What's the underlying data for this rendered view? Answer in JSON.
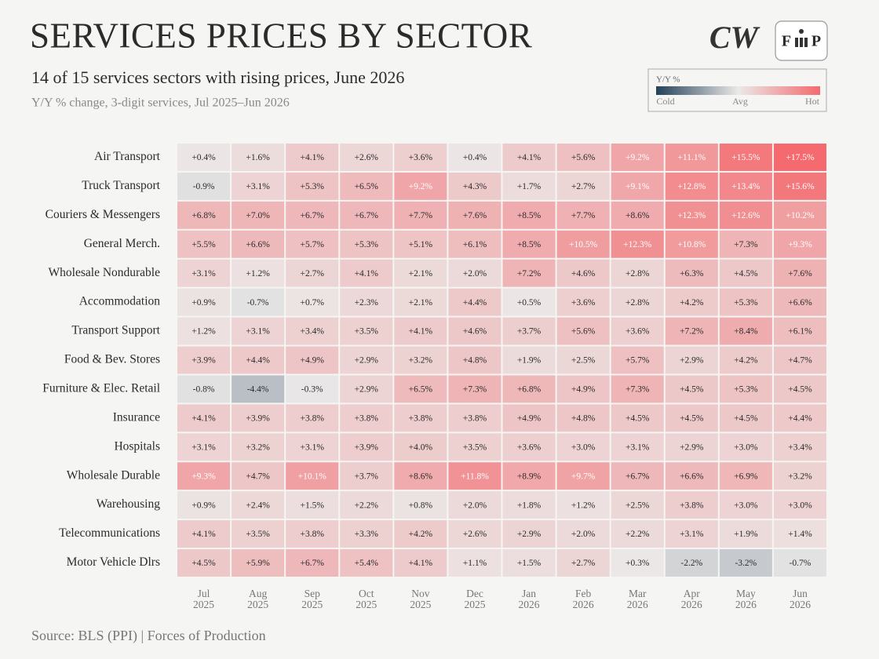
{
  "chart_data": {
    "type": "heatmap",
    "title": "SERVICES PRICES BY SECTOR",
    "subtitle": "14 of 15 services sectors with rising prices, June 2026",
    "caption": "Y/Y % change, 3-digit services, Jul 2025–Jun 2026",
    "source": "Source: BLS (PPI) | Forces of Production",
    "brand_marks": [
      "CW",
      "F",
      "P"
    ],
    "legend": {
      "title": "Y/Y %",
      "labels": [
        "Cold",
        "Avg",
        "Hot"
      ]
    },
    "colormap": [
      "#234158",
      "#ebe9e8",
      "#f46a6f"
    ],
    "x": [
      "Jul 2025",
      "Aug 2025",
      "Sep 2025",
      "Oct 2025",
      "Nov 2025",
      "Dec 2025",
      "Jan 2026",
      "Feb 2026",
      "Mar 2026",
      "Apr 2026",
      "May 2026",
      "Jun 2026"
    ],
    "series": [
      {
        "name": "Air Transport",
        "values": [
          0.4,
          1.6,
          4.1,
          2.6,
          3.6,
          0.4,
          4.1,
          5.6,
          9.2,
          11.1,
          15.5,
          17.5
        ],
        "value_labels": [
          "+0.4%",
          "+1.6%",
          "+4.1%",
          "+2.6%",
          "+3.6%",
          "+0.4%",
          "+4.1%",
          "+5.6%",
          "+9.2%",
          "+11.1%",
          "+15.5%",
          "+17.5%"
        ]
      },
      {
        "name": "Truck Transport",
        "values": [
          -0.9,
          3.1,
          5.3,
          6.5,
          9.2,
          4.3,
          1.7,
          2.7,
          9.1,
          12.8,
          13.4,
          15.6
        ],
        "value_labels": [
          "-0.9%",
          "+3.1%",
          "+5.3%",
          "+6.5%",
          "+9.2%",
          "+4.3%",
          "+1.7%",
          "+2.7%",
          "+9.1%",
          "+12.8%",
          "+13.4%",
          "+15.6%"
        ]
      },
      {
        "name": "Couriers & Messengers",
        "values": [
          6.8,
          7.0,
          6.7,
          6.7,
          7.7,
          7.6,
          8.5,
          7.7,
          8.6,
          12.3,
          12.6,
          10.2
        ],
        "value_labels": [
          "+6.8%",
          "+7.0%",
          "+6.7%",
          "+6.7%",
          "+7.7%",
          "+7.6%",
          "+8.5%",
          "+7.7%",
          "+8.6%",
          "+12.3%",
          "+12.6%",
          "+10.2%"
        ]
      },
      {
        "name": "General Merch.",
        "values": [
          5.5,
          6.6,
          5.7,
          5.3,
          5.1,
          6.1,
          8.5,
          10.5,
          12.3,
          10.8,
          7.3,
          9.3
        ],
        "value_labels": [
          "+5.5%",
          "+6.6%",
          "+5.7%",
          "+5.3%",
          "+5.1%",
          "+6.1%",
          "+8.5%",
          "+10.5%",
          "+12.3%",
          "+10.8%",
          "+7.3%",
          "+9.3%"
        ]
      },
      {
        "name": "Wholesale Nondurable",
        "values": [
          3.1,
          1.2,
          2.7,
          4.1,
          2.1,
          2.0,
          7.2,
          4.6,
          2.8,
          6.3,
          4.5,
          7.6
        ],
        "value_labels": [
          "+3.1%",
          "+1.2%",
          "+2.7%",
          "+4.1%",
          "+2.1%",
          "+2.0%",
          "+7.2%",
          "+4.6%",
          "+2.8%",
          "+6.3%",
          "+4.5%",
          "+7.6%"
        ]
      },
      {
        "name": "Accommodation",
        "values": [
          0.9,
          -0.7,
          0.7,
          2.3,
          2.1,
          4.4,
          0.5,
          3.6,
          2.8,
          4.2,
          5.3,
          6.6
        ],
        "value_labels": [
          "+0.9%",
          "-0.7%",
          "+0.7%",
          "+2.3%",
          "+2.1%",
          "+4.4%",
          "+0.5%",
          "+3.6%",
          "+2.8%",
          "+4.2%",
          "+5.3%",
          "+6.6%"
        ]
      },
      {
        "name": "Transport Support",
        "values": [
          1.2,
          3.1,
          3.4,
          3.5,
          4.1,
          4.6,
          3.7,
          5.6,
          3.6,
          7.2,
          8.4,
          6.1
        ],
        "value_labels": [
          "+1.2%",
          "+3.1%",
          "+3.4%",
          "+3.5%",
          "+4.1%",
          "+4.6%",
          "+3.7%",
          "+5.6%",
          "+3.6%",
          "+7.2%",
          "+8.4%",
          "+6.1%"
        ]
      },
      {
        "name": "Food & Bev. Stores",
        "values": [
          3.9,
          4.4,
          4.9,
          2.9,
          3.2,
          4.8,
          1.9,
          2.5,
          5.7,
          2.9,
          4.2,
          4.7
        ],
        "value_labels": [
          "+3.9%",
          "+4.4%",
          "+4.9%",
          "+2.9%",
          "+3.2%",
          "+4.8%",
          "+1.9%",
          "+2.5%",
          "+5.7%",
          "+2.9%",
          "+4.2%",
          "+4.7%"
        ]
      },
      {
        "name": "Furniture & Elec. Retail",
        "values": [
          -0.8,
          -4.4,
          -0.3,
          2.9,
          6.5,
          7.3,
          6.8,
          4.9,
          7.3,
          4.5,
          5.3,
          4.5
        ],
        "value_labels": [
          "-0.8%",
          "-4.4%",
          "-0.3%",
          "+2.9%",
          "+6.5%",
          "+7.3%",
          "+6.8%",
          "+4.9%",
          "+7.3%",
          "+4.5%",
          "+5.3%",
          "+4.5%"
        ]
      },
      {
        "name": "Insurance",
        "values": [
          4.1,
          3.9,
          3.8,
          3.8,
          3.8,
          3.8,
          4.9,
          4.8,
          4.5,
          4.5,
          4.5,
          4.4
        ],
        "value_labels": [
          "+4.1%",
          "+3.9%",
          "+3.8%",
          "+3.8%",
          "+3.8%",
          "+3.8%",
          "+4.9%",
          "+4.8%",
          "+4.5%",
          "+4.5%",
          "+4.5%",
          "+4.4%"
        ]
      },
      {
        "name": "Hospitals",
        "values": [
          3.1,
          3.2,
          3.1,
          3.9,
          4.0,
          3.5,
          3.6,
          3.0,
          3.1,
          2.9,
          3.0,
          3.4
        ],
        "value_labels": [
          "+3.1%",
          "+3.2%",
          "+3.1%",
          "+3.9%",
          "+4.0%",
          "+3.5%",
          "+3.6%",
          "+3.0%",
          "+3.1%",
          "+2.9%",
          "+3.0%",
          "+3.4%"
        ]
      },
      {
        "name": "Wholesale Durable",
        "values": [
          9.3,
          4.7,
          10.1,
          3.7,
          8.6,
          11.8,
          8.9,
          9.7,
          6.7,
          6.6,
          6.9,
          3.2
        ],
        "value_labels": [
          "+9.3%",
          "+4.7%",
          "+10.1%",
          "+3.7%",
          "+8.6%",
          "+11.8%",
          "+8.9%",
          "+9.7%",
          "+6.7%",
          "+6.6%",
          "+6.9%",
          "+3.2%"
        ]
      },
      {
        "name": "Warehousing",
        "values": [
          0.9,
          2.4,
          1.5,
          2.2,
          0.8,
          2.0,
          1.8,
          1.2,
          2.5,
          3.8,
          3.0,
          3.0
        ],
        "value_labels": [
          "+0.9%",
          "+2.4%",
          "+1.5%",
          "+2.2%",
          "+0.8%",
          "+2.0%",
          "+1.8%",
          "+1.2%",
          "+2.5%",
          "+3.8%",
          "+3.0%",
          "+3.0%"
        ]
      },
      {
        "name": "Telecommunications",
        "values": [
          4.1,
          3.5,
          3.8,
          3.3,
          4.2,
          2.6,
          2.9,
          2.0,
          2.2,
          3.1,
          1.9,
          1.4
        ],
        "value_labels": [
          "+4.1%",
          "+3.5%",
          "+3.8%",
          "+3.3%",
          "+4.2%",
          "+2.6%",
          "+2.9%",
          "+2.0%",
          "+2.2%",
          "+3.1%",
          "+1.9%",
          "+1.4%"
        ]
      },
      {
        "name": "Motor Vehicle Dlrs",
        "values": [
          4.5,
          5.9,
          6.7,
          5.4,
          4.1,
          1.1,
          1.5,
          2.7,
          0.3,
          -2.2,
          -3.2,
          -0.7
        ],
        "value_labels": [
          "+4.5%",
          "+5.9%",
          "+6.7%",
          "+5.4%",
          "+4.1%",
          "+1.1%",
          "+1.5%",
          "+2.7%",
          "+0.3%",
          "-2.2%",
          "-3.2%",
          "-0.7%"
        ]
      }
    ]
  }
}
